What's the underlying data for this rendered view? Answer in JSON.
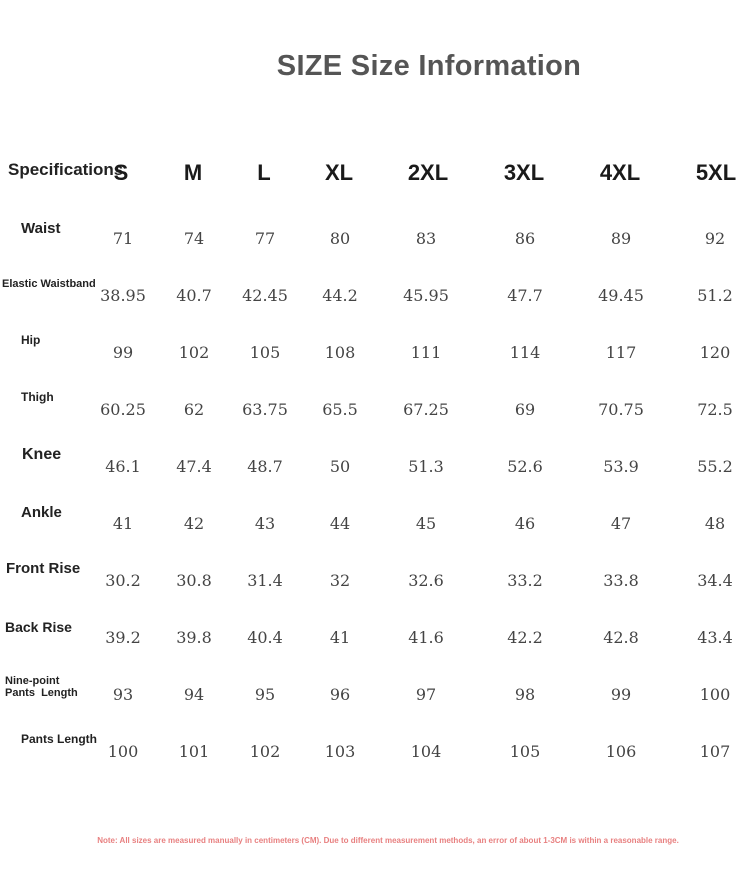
{
  "page": {
    "title": "SIZE Size Information",
    "spec_header": "Specifications",
    "note": "Note: All sizes are measured manually in centimeters (CM). Due to different measurement methods, an error of about 1-3CM is within a reasonable range."
  },
  "sizes": [
    "S",
    "M",
    "L",
    "XL",
    "2XL",
    "3XL",
    "4XL",
    "5XL"
  ],
  "rows": [
    {
      "label": "Waist",
      "values": [
        "71",
        "74",
        "77",
        "80",
        "83",
        "86",
        "89",
        "92"
      ]
    },
    {
      "label": "Elastic Waistband",
      "values": [
        "38.95",
        "40.7",
        "42.45",
        "44.2",
        "45.95",
        "47.7",
        "49.45",
        "51.2"
      ]
    },
    {
      "label": "Hip",
      "values": [
        "99",
        "102",
        "105",
        "108",
        "111",
        "114",
        "117",
        "120"
      ]
    },
    {
      "label": "Thigh",
      "values": [
        "60.25",
        "62",
        "63.75",
        "65.5",
        "67.25",
        "69",
        "70.75",
        "72.5"
      ]
    },
    {
      "label": "Knee",
      "values": [
        "46.1",
        "47.4",
        "48.7",
        "50",
        "51.3",
        "52.6",
        "53.9",
        "55.2"
      ]
    },
    {
      "label": "Ankle",
      "values": [
        "41",
        "42",
        "43",
        "44",
        "45",
        "46",
        "47",
        "48"
      ]
    },
    {
      "label": "Front Rise",
      "values": [
        "30.2",
        "30.8",
        "31.4",
        "32",
        "32.6",
        "33.2",
        "33.8",
        "34.4"
      ]
    },
    {
      "label": "Back Rise",
      "values": [
        "39.2",
        "39.8",
        "40.4",
        "41",
        "41.6",
        "42.2",
        "42.8",
        "43.4"
      ]
    },
    {
      "label": "Nine-point Pants  Length",
      "values": [
        "93",
        "94",
        "95",
        "96",
        "97",
        "98",
        "99",
        "100"
      ]
    },
    {
      "label": "Pants Length",
      "values": [
        "100",
        "101",
        "102",
        "103",
        "104",
        "105",
        "106",
        "107"
      ]
    }
  ]
}
